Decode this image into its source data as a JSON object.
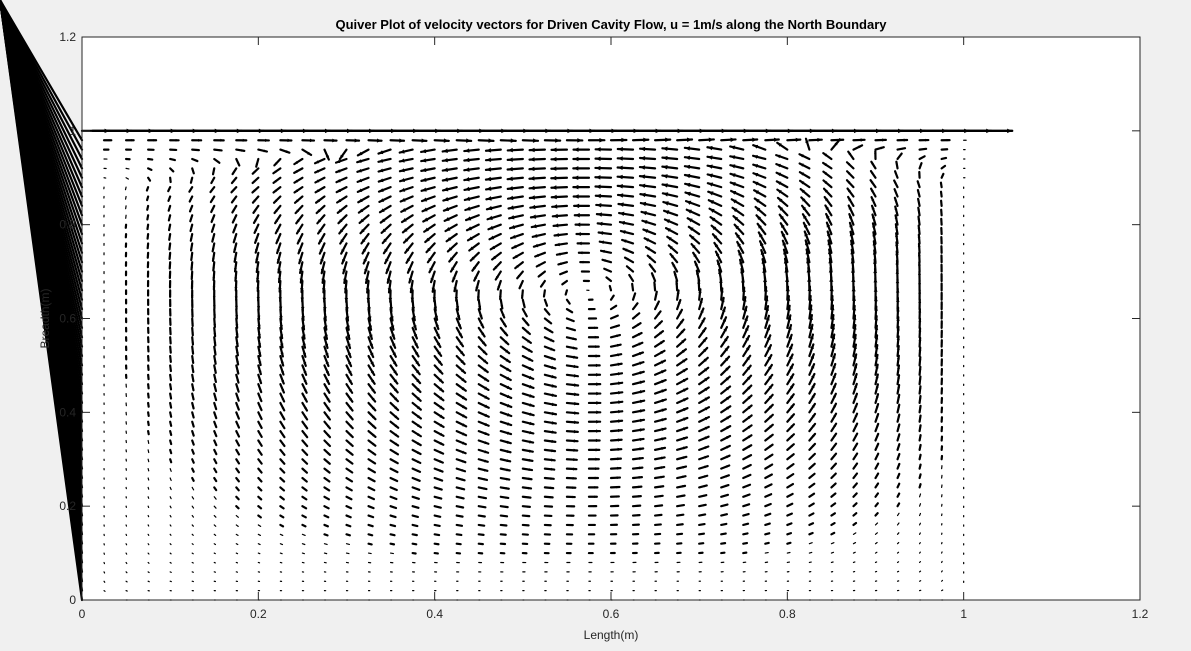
{
  "window": {
    "background": "#f0f0f0"
  },
  "chart_data": {
    "type": "quiver",
    "title": "Quiver Plot of velocity vectors for Driven Cavity Flow, u = 1m/s along the North Boundary",
    "xlabel": "Length(m)",
    "ylabel": "Breadth(m)",
    "xlim": [
      0,
      1.2
    ],
    "ylim": [
      0,
      1.2
    ],
    "xticks": [
      0,
      0.2,
      0.4,
      0.6,
      0.8,
      1,
      1.2
    ],
    "yticks": [
      0,
      0.2,
      0.4,
      0.6,
      0.8,
      1,
      1.2
    ],
    "xtick_labels": [
      "0",
      "0.2",
      "0.4",
      "0.6",
      "0.8",
      "1",
      "1.2"
    ],
    "ytick_labels": [
      "0",
      "0.2",
      "0.4",
      "0.6",
      "0.8",
      "1",
      "1.2"
    ],
    "grid": false,
    "domain": {
      "x": [
        0,
        1
      ],
      "y": [
        0,
        1
      ]
    },
    "grid_points": {
      "nx": 41,
      "ny": 51
    },
    "boundary_velocity": {
      "u": 1,
      "edge": "North"
    },
    "vortex_center": [
      0.62,
      0.62
    ],
    "arrow_color": "#000000",
    "axes_color": "#ffffff",
    "axis_line_color": "#262626"
  }
}
